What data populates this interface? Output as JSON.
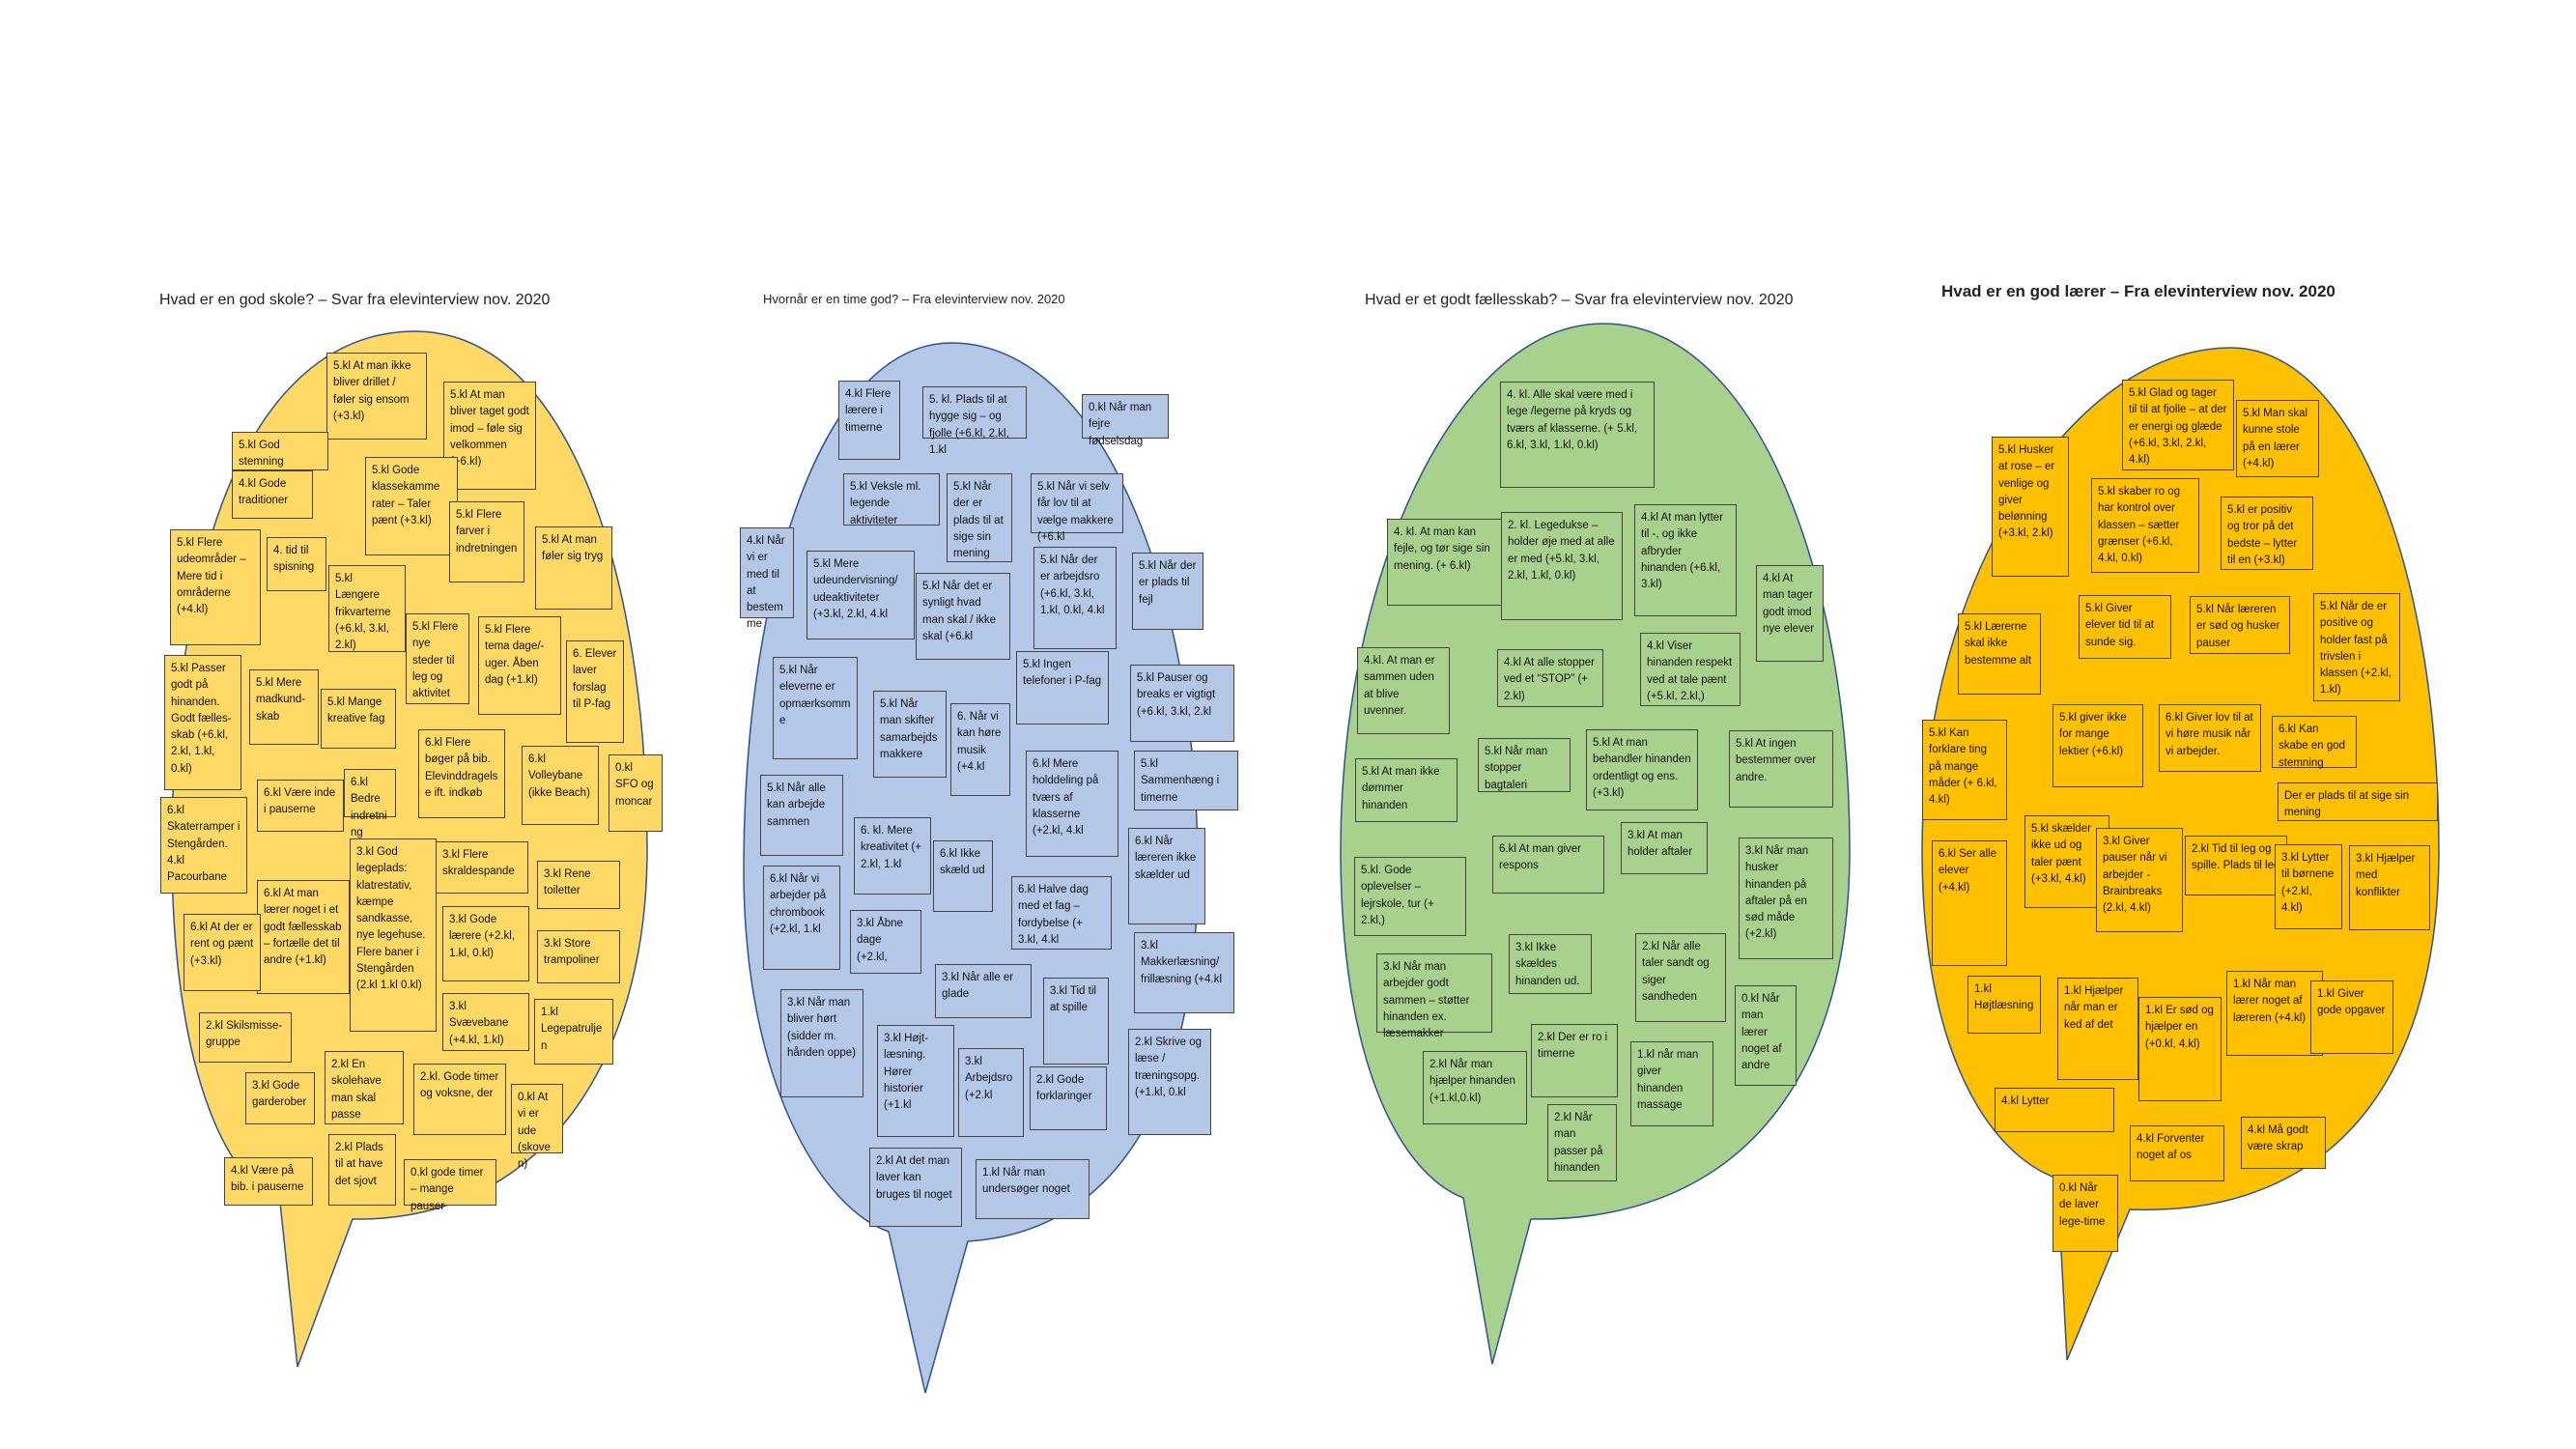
{
  "colors": {
    "yellow_bubble": "#ffd966",
    "blue_bubble": "#b4c7e7",
    "green_bubble": "#a9d18e",
    "orange_bubble": "#ffc000",
    "note_border": "#444444"
  },
  "bubbles": [
    {
      "id": "school",
      "title": "Hvad er en god skole? – Svar fra elevinterview nov. 2020",
      "notes": [
        "5.kl At man ikke bliver drillet / føler sig ensom (+3.kl)",
        "5.kl At man bliver taget godt imod – føle sig velkommen (+6.kl)",
        "5.kl God stemning",
        "4.kl Gode traditioner",
        "5.kl Gode klassekamme rater – Taler pænt (+3.kl)",
        "5.kl Flere farver i indretningen",
        "5.kl Flere udeområder – Mere tid i områderne (+4.kl)",
        "4. tid til spisning",
        "5.kl Længere frikvarterne (+6.kl, 3.kl, 2.kl)",
        "5.kl At man føler sig tryg",
        "5.kl Flere nye steder til leg og aktivitet",
        "5.kl Flere tema dage/-uger. Åben dag (+1.kl)",
        "6. Elever laver forslag til P-fag",
        "5.kl Passer godt på hinanden. Godt fælles-skab (+6.kl, 2.kl, 1.kl, 0.kl)",
        "5.kl Mere madkund-skab",
        "5.kl Mange kreative fag",
        "6.kl Flere bøger på bib. Elevinddragelse ift. indkøb",
        "6.kl Volleybane (ikke Beach)",
        "0.kl SFO og moncar",
        "6.kl Være inde i pauserne",
        "6.kl Bedre indretning",
        "6.kl Skaterramper i Stengården. 4.kl Pacourbane",
        "3.kl God legeplads: klatrestativ, kæmpe sandkasse, nye legehuse. Flere baner i Stengården (2.kl 1.kl 0.kl)",
        "3.kl Flere skraldespande",
        "3.kl Rene toiletter",
        "6.kl At man lærer noget i et godt fællesskab – fortælle det til andre (+1.kl)",
        "6.kl At der er rent og pænt (+3.kl)",
        "3.kl Gode lærere (+2.kl, 1.kl, 0.kl)",
        "3.kl Store trampoliner",
        "2.kl Skilsmisse-gruppe",
        "3.kl Svævebane (+4.kl, 1.kl)",
        "1.kl Legepatruljen",
        "3.kl Gode garderober",
        "2.kl En skolehave man skal passe",
        "2.kl. Gode timer og voksne, der",
        "0.kl At vi er ude (skoven)",
        "4.kl Være på bib. i pauserne",
        "2.kl Plads til at have det sjovt",
        "0.kl gode timer – mange pauser"
      ]
    },
    {
      "id": "lesson",
      "title": "Hvornår er en time god? – Fra elevinterview nov. 2020",
      "notes": [
        "4.kl Flere lærere i timerne",
        "5. kl. Plads til at hygge sig – og fjolle (+6.kl, 2.kl, 1.kl",
        "0.kl Når man fejre fødselsdag",
        "5.kl Veksle ml. legende aktiviteter",
        "5.kl Når der er plads til at sige sin mening",
        "5.kl Når vi selv får lov til at vælge makkere (+6.kl",
        "4.kl Når vi er med til at bestemme",
        "5.kl Mere udeundervisning/ udeaktiviteter (+3.kl, 2.kl, 4.kl",
        "5.kl Når det er synligt hvad man skal / ikke skal (+6.kl",
        "5.kl Når der er arbejdsro (+6.kl, 3.kl, 1.kl, 0.kl, 4.kl",
        "5.kl Når der er plads til fejl",
        "5.kl Når eleverne er opmærksomme",
        "5.kl Når man skifter samarbejds makkere",
        "6. Når vi kan høre musik (+4.kl",
        "5.kl Ingen telefoner i P-fag",
        "5.kl Pauser og breaks er vigtigt (+6.kl, 3.kl, 2.kl",
        "5.kl Når alle kan arbejde sammen",
        "6.kl Mere holddeling på tværs af klasserne (+2.kl, 4.kl",
        "5.kl Sammenhæng i timerne",
        "6. kl. Mere kreativitet (+ 2.kl, 1.kl",
        "6.kl Ikke skæld ud",
        "6.kl Når læreren ikke skælder ud",
        "6.kl Når vi arbejder på chrombook (+2.kl, 1.kl",
        "6.kl Halve dag med et fag – fordybelse (+ 3.kl, 4.kl",
        "3.kl Åbne dage (+2.kl,",
        "3.kl Makkerlæsning/ frillæsning (+4.kl",
        "3.kl Når alle er glade",
        "3.kl Når man bliver hørt (sidder m. hånden oppe)",
        "3.kl Tid til at spille",
        "3.kl Højt-læsning. Hører historier (+1.kl",
        "3.kl Arbejdsro (+2.kl",
        "2.kl Gode forklaringer",
        "2.kl Skrive og læse / træningsopg. (+1.kl, 0.kl",
        "2.kl At det man laver kan bruges til noget",
        "1.kl Når man undersøger noget"
      ]
    },
    {
      "id": "community",
      "title": "Hvad er et godt fællesskab? – Svar fra elevinterview nov. 2020",
      "notes": [
        "4. kl. Alle skal være med i lege /legerne på kryds og tværs af klasserne. (+ 5.kl, 6.kl, 3.kl, 1.kl, 0.kl)",
        "4. kl. At man kan fejle, og tør sige sin mening. (+ 6.kl)",
        "2. kl. Legedukse – holder øje med at alle er med (+5.kl, 3.kl, 2.kl, 1.kl, 0.kl)",
        "4.kl At man lytter til -, og ikke afbryder hinanden (+6.kl, 3.kl)",
        "4.kl At man tager godt imod nye elever",
        "4.kl. At man er sammen uden at blive uvenner.",
        "4.kl At alle stopper ved et “STOP” (+ 2.kl)",
        "4.kl Viser hinanden respekt ved at tale pænt (+5.kl, 2.kl,)",
        "5.kl At man ikke dømmer hinanden",
        "5.kl Når man stopper bagtaleri",
        "5.kl At man behandler hinanden ordentligt og ens. (+3.kl)",
        "5.kl At ingen bestemmer over andre.",
        "5.kl. Gode oplevelser – lejrskole, tur (+ 2.kl,)",
        "6.kl At man giver respons",
        "3.kl At man holder aftaler",
        "3.kl Når man husker hinanden på aftaler på en sød måde (+2.kl)",
        "3.kl Når man arbejder godt sammen – støtter hinanden ex. læsemakker",
        "3.kl Ikke skældes hinanden ud.",
        "2.kl Når alle taler sandt og siger sandheden",
        "2.kl Der er ro i timerne",
        "0.kl Når man lærer noget af andre",
        "2.kl Når man hjælper hinanden (+1.kl,0.kl)",
        "1.kl når man giver hinanden massage",
        "2.kl Når man passer på hinanden"
      ]
    },
    {
      "id": "teacher",
      "title": "Hvad er en god lærer – Fra elevinterview nov. 2020",
      "notes": [
        "5.kl Glad og tager til til at fjolle – at der er energi og glæde (+6.kl, 3.kl, 2.kl, 4.kl)",
        "5.kl Man skal kunne stole på en lærer (+4.kl)",
        "5.kl Husker at rose – er venlige og giver belønning (+3.kl, 2.kl)",
        "5.kl skaber ro og har kontrol over klassen – sætter grænser (+6.kl, 4.kl, 0.kl)",
        "5.kl er positiv og tror på det bedste – lytter til en (+3.kl)",
        "5.kl Lærerne skal ikke bestemme alt",
        "5.kl Giver elever tid til at sunde sig.",
        "5.kl Når læreren er sød og husker pauser",
        "5.kl Når de er positive og holder fast på trivslen i klassen (+2.kl, 1.kl)",
        "5.kl Kan forklare ting på mange måder (+ 6.kl, 4.kl)",
        "5.kl giver ikke for mange lektier (+6.kl)",
        "6.kl Giver lov til at vi høre musik når vi arbejder.",
        "6.kl Kan skabe en god stemning",
        "Der er plads til at sige sin mening",
        "6.kl Ser alle elever (+4.kl)",
        "5.kl skælder ikke ud og taler pænt (+3.kl, 4.kl)",
        "3.kl Giver pauser når vi arbejder - Brainbreaks (2.kl, 4.kl)",
        "2.kl Tid til leg og spille. Plads til leg",
        "3.kl Lytter til børnene (+2.kl, 4.kl)",
        "3.kl Hjælper med konflikter",
        "1.kl Højtlæsning",
        "1.kl Hjælper når man er ked af det",
        "1.kl Er sød og hjælper en (+0.kl, 4.kl)",
        "1.kl Når man lærer noget af læreren (+4.kl)",
        "1.kl Giver gode opgaver",
        "4.kl Lytter",
        "4.kl Forventer noget af os",
        "4.kl Må godt være skrap",
        "0.kl Når de laver lege-time"
      ]
    }
  ]
}
